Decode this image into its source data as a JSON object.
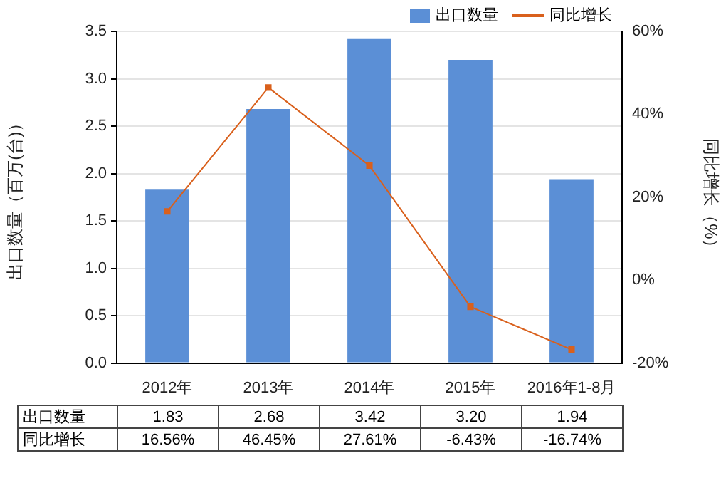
{
  "chart_data": {
    "type": "bar",
    "categories": [
      "2012年",
      "2013年",
      "2014年",
      "2015年",
      "2016年1-8月"
    ],
    "ylabel": "出口数量（百万(台)）",
    "y2label": "同比增长（%）",
    "ylim": [
      0,
      3.5
    ],
    "yticks": [
      {
        "value": 0,
        "label": "0.0"
      },
      {
        "value": 0.5,
        "label": "0.5"
      },
      {
        "value": 1,
        "label": "1.0"
      },
      {
        "value": 1.5,
        "label": "1.5"
      },
      {
        "value": 2,
        "label": "2.0"
      },
      {
        "value": 2.5,
        "label": "2.5"
      },
      {
        "value": 3,
        "label": "3.0"
      },
      {
        "value": 3.5,
        "label": "3.5"
      }
    ],
    "y2lim": [
      -20,
      60
    ],
    "y2ticks": [
      {
        "value": -20,
        "label": "-20%"
      },
      {
        "value": 0,
        "label": "0%"
      },
      {
        "value": 20,
        "label": "20%"
      },
      {
        "value": 40,
        "label": "40%"
      },
      {
        "value": 60,
        "label": "60%"
      }
    ],
    "series": [
      {
        "name": "出口数量",
        "color": "#5b8fd6",
        "values": [
          1.83,
          2.68,
          3.42,
          3.2,
          1.94
        ],
        "value_labels": [
          "1.83",
          "2.68",
          "3.42",
          "3.20",
          "1.94"
        ]
      },
      {
        "name": "同比增长",
        "type": "line",
        "axis": "y2",
        "color": "#d9601c",
        "marker": "square",
        "values": [
          16.56,
          46.45,
          27.61,
          -6.43,
          -16.74
        ],
        "value_labels": [
          "16.56%",
          "46.45%",
          "27.61%",
          "-6.43%",
          "-16.74%"
        ]
      }
    ],
    "grid": "y",
    "legend": "top right"
  }
}
